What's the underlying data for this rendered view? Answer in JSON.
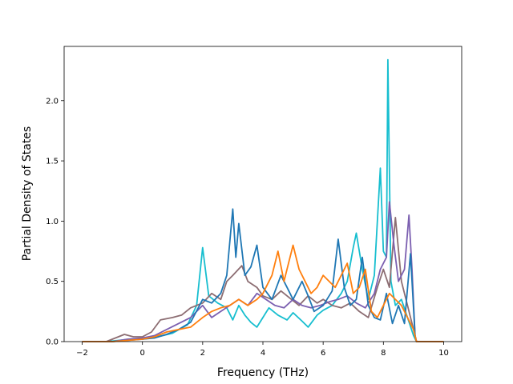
{
  "chart_data": {
    "type": "line",
    "xlabel": "Frequency (THz)",
    "ylabel": "Partial Density of States",
    "xlim": [
      -2.6,
      10.6
    ],
    "ylim": [
      0,
      2.45
    ],
    "x_ticks": [
      "−2",
      "0",
      "2",
      "4",
      "6",
      "8",
      "10"
    ],
    "y_ticks": [
      "0.0",
      "0.5",
      "1.0",
      "1.5",
      "2.0"
    ],
    "grid": false,
    "legend": "none",
    "series": [
      {
        "color": "#17becf",
        "points": [
          [
            -2,
            0
          ],
          [
            -1.2,
            0
          ],
          [
            -0.8,
            0.01
          ],
          [
            -0.4,
            0.02
          ],
          [
            0,
            0.02
          ],
          [
            0.5,
            0.04
          ],
          [
            1,
            0.07
          ],
          [
            1.5,
            0.14
          ],
          [
            1.8,
            0.3
          ],
          [
            2,
            0.78
          ],
          [
            2.2,
            0.38
          ],
          [
            2.5,
            0.32
          ],
          [
            2.8,
            0.28
          ],
          [
            3,
            0.18
          ],
          [
            3.2,
            0.3
          ],
          [
            3.4,
            0.22
          ],
          [
            3.6,
            0.16
          ],
          [
            3.8,
            0.12
          ],
          [
            4,
            0.2
          ],
          [
            4.2,
            0.28
          ],
          [
            4.5,
            0.22
          ],
          [
            4.8,
            0.18
          ],
          [
            5,
            0.24
          ],
          [
            5.3,
            0.17
          ],
          [
            5.5,
            0.12
          ],
          [
            5.8,
            0.22
          ],
          [
            6,
            0.26
          ],
          [
            6.3,
            0.3
          ],
          [
            6.6,
            0.4
          ],
          [
            6.8,
            0.5
          ],
          [
            7,
            0.78
          ],
          [
            7.1,
            0.9
          ],
          [
            7.3,
            0.6
          ],
          [
            7.5,
            0.35
          ],
          [
            7.7,
            0.55
          ],
          [
            7.9,
            1.44
          ],
          [
            8,
            0.75
          ],
          [
            8.1,
            0.7
          ],
          [
            8.15,
            2.34
          ],
          [
            8.25,
            0.5
          ],
          [
            8.4,
            0.3
          ],
          [
            8.6,
            0.35
          ],
          [
            8.8,
            0.2
          ],
          [
            9,
            0.05
          ],
          [
            9.1,
            0
          ],
          [
            10,
            0
          ]
        ]
      },
      {
        "color": "#8c6d72",
        "points": [
          [
            -2,
            0
          ],
          [
            -1.2,
            0
          ],
          [
            -1,
            0.02
          ],
          [
            -0.6,
            0.06
          ],
          [
            -0.3,
            0.04
          ],
          [
            0,
            0.04
          ],
          [
            0.3,
            0.08
          ],
          [
            0.6,
            0.18
          ],
          [
            1,
            0.2
          ],
          [
            1.3,
            0.22
          ],
          [
            1.6,
            0.28
          ],
          [
            2,
            0.32
          ],
          [
            2.3,
            0.4
          ],
          [
            2.6,
            0.35
          ],
          [
            2.8,
            0.5
          ],
          [
            3,
            0.55
          ],
          [
            3.3,
            0.63
          ],
          [
            3.5,
            0.5
          ],
          [
            3.8,
            0.45
          ],
          [
            4,
            0.38
          ],
          [
            4.3,
            0.35
          ],
          [
            4.6,
            0.42
          ],
          [
            4.9,
            0.36
          ],
          [
            5.2,
            0.3
          ],
          [
            5.5,
            0.38
          ],
          [
            5.8,
            0.32
          ],
          [
            6,
            0.35
          ],
          [
            6.3,
            0.3
          ],
          [
            6.6,
            0.28
          ],
          [
            6.9,
            0.32
          ],
          [
            7.2,
            0.25
          ],
          [
            7.5,
            0.2
          ],
          [
            7.8,
            0.45
          ],
          [
            8,
            0.6
          ],
          [
            8.2,
            0.45
          ],
          [
            8.4,
            1.03
          ],
          [
            8.6,
            0.5
          ],
          [
            8.8,
            0.3
          ],
          [
            9,
            0.1
          ],
          [
            9.1,
            0
          ],
          [
            10,
            0
          ]
        ]
      },
      {
        "color": "#7b5fb0",
        "points": [
          [
            -2,
            0
          ],
          [
            -1,
            0
          ],
          [
            -0.5,
            0.02
          ],
          [
            0,
            0.03
          ],
          [
            0.4,
            0.05
          ],
          [
            0.8,
            0.1
          ],
          [
            1.2,
            0.15
          ],
          [
            1.6,
            0.2
          ],
          [
            2,
            0.3
          ],
          [
            2.3,
            0.2
          ],
          [
            2.6,
            0.25
          ],
          [
            2.9,
            0.3
          ],
          [
            3.2,
            0.35
          ],
          [
            3.5,
            0.3
          ],
          [
            3.8,
            0.4
          ],
          [
            4.1,
            0.35
          ],
          [
            4.4,
            0.3
          ],
          [
            4.7,
            0.28
          ],
          [
            5,
            0.35
          ],
          [
            5.3,
            0.3
          ],
          [
            5.6,
            0.28
          ],
          [
            5.9,
            0.3
          ],
          [
            6.2,
            0.33
          ],
          [
            6.5,
            0.35
          ],
          [
            6.8,
            0.38
          ],
          [
            7.1,
            0.32
          ],
          [
            7.4,
            0.28
          ],
          [
            7.7,
            0.4
          ],
          [
            7.9,
            0.6
          ],
          [
            8.1,
            0.7
          ],
          [
            8.2,
            1.16
          ],
          [
            8.35,
            0.8
          ],
          [
            8.5,
            0.5
          ],
          [
            8.7,
            0.6
          ],
          [
            8.85,
            1.05
          ],
          [
            8.95,
            0.6
          ],
          [
            9.05,
            0.05
          ],
          [
            9.1,
            0
          ],
          [
            10,
            0
          ]
        ]
      },
      {
        "color": "#1f77b4",
        "points": [
          [
            -2,
            0
          ],
          [
            -1,
            0
          ],
          [
            -0.5,
            0.01
          ],
          [
            0,
            0.02
          ],
          [
            0.4,
            0.03
          ],
          [
            0.8,
            0.06
          ],
          [
            1.2,
            0.1
          ],
          [
            1.6,
            0.16
          ],
          [
            2,
            0.35
          ],
          [
            2.3,
            0.32
          ],
          [
            2.6,
            0.4
          ],
          [
            2.8,
            0.55
          ],
          [
            3,
            1.1
          ],
          [
            3.1,
            0.7
          ],
          [
            3.2,
            0.98
          ],
          [
            3.4,
            0.55
          ],
          [
            3.6,
            0.62
          ],
          [
            3.8,
            0.8
          ],
          [
            4,
            0.45
          ],
          [
            4.3,
            0.35
          ],
          [
            4.6,
            0.55
          ],
          [
            4.8,
            0.45
          ],
          [
            5,
            0.35
          ],
          [
            5.3,
            0.5
          ],
          [
            5.5,
            0.38
          ],
          [
            5.7,
            0.25
          ],
          [
            6,
            0.3
          ],
          [
            6.3,
            0.42
          ],
          [
            6.5,
            0.85
          ],
          [
            6.7,
            0.45
          ],
          [
            6.9,
            0.3
          ],
          [
            7.1,
            0.35
          ],
          [
            7.3,
            0.7
          ],
          [
            7.5,
            0.3
          ],
          [
            7.7,
            0.2
          ],
          [
            7.9,
            0.18
          ],
          [
            8.1,
            0.4
          ],
          [
            8.3,
            0.15
          ],
          [
            8.5,
            0.3
          ],
          [
            8.7,
            0.15
          ],
          [
            8.9,
            0.73
          ],
          [
            9.05,
            0.05
          ],
          [
            9.1,
            0
          ],
          [
            10,
            0
          ]
        ]
      },
      {
        "color": "#ff7f0e",
        "points": [
          [
            -2,
            0
          ],
          [
            -1,
            0
          ],
          [
            -0.5,
            0.01
          ],
          [
            0,
            0.02
          ],
          [
            0.4,
            0.04
          ],
          [
            0.8,
            0.08
          ],
          [
            1.2,
            0.1
          ],
          [
            1.6,
            0.12
          ],
          [
            2,
            0.2
          ],
          [
            2.3,
            0.25
          ],
          [
            2.6,
            0.28
          ],
          [
            2.9,
            0.3
          ],
          [
            3.2,
            0.35
          ],
          [
            3.5,
            0.3
          ],
          [
            3.8,
            0.35
          ],
          [
            4,
            0.4
          ],
          [
            4.3,
            0.55
          ],
          [
            4.5,
            0.75
          ],
          [
            4.7,
            0.5
          ],
          [
            5,
            0.8
          ],
          [
            5.2,
            0.6
          ],
          [
            5.4,
            0.5
          ],
          [
            5.6,
            0.4
          ],
          [
            5.8,
            0.45
          ],
          [
            6,
            0.55
          ],
          [
            6.2,
            0.5
          ],
          [
            6.4,
            0.45
          ],
          [
            6.6,
            0.55
          ],
          [
            6.8,
            0.65
          ],
          [
            7,
            0.4
          ],
          [
            7.2,
            0.45
          ],
          [
            7.4,
            0.6
          ],
          [
            7.6,
            0.25
          ],
          [
            7.8,
            0.2
          ],
          [
            8,
            0.3
          ],
          [
            8.2,
            0.4
          ],
          [
            8.4,
            0.35
          ],
          [
            8.6,
            0.3
          ],
          [
            8.8,
            0.2
          ],
          [
            9,
            0.1
          ],
          [
            9.1,
            0
          ],
          [
            10,
            0
          ]
        ]
      }
    ]
  }
}
